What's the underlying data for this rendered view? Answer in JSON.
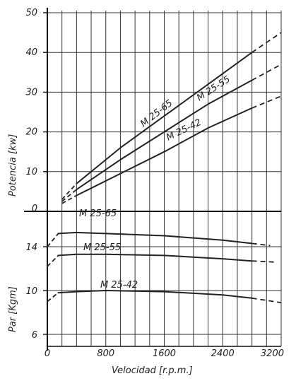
{
  "chart_data": [
    {
      "type": "line",
      "panel": "power",
      "ylabel": "Potencia [kw]",
      "xlim": [
        0,
        3200
      ],
      "ylim": [
        0,
        50
      ],
      "yticks": [
        0,
        10,
        20,
        30,
        40,
        50
      ],
      "grid": true,
      "series": [
        {
          "name": "M 25-65",
          "solid": [
            [
              400,
              7
            ],
            [
              1000,
              16
            ],
            [
              1600,
              24
            ],
            [
              2200,
              32
            ],
            [
              2800,
              40
            ]
          ],
          "dashed_low": [
            [
              200,
              3
            ],
            [
              400,
              7
            ]
          ],
          "dashed_high": [
            [
              2800,
              40
            ],
            [
              3200,
              45
            ]
          ]
        },
        {
          "name": "M 25-55",
          "solid": [
            [
              400,
              5.5
            ],
            [
              1000,
              13
            ],
            [
              1600,
              20
            ],
            [
              2200,
              27
            ],
            [
              2800,
              33
            ]
          ],
          "dashed_low": [
            [
              200,
              2.5
            ],
            [
              400,
              5.5
            ]
          ],
          "dashed_high": [
            [
              2800,
              33
            ],
            [
              3200,
              37
            ]
          ]
        },
        {
          "name": "M 25-42",
          "solid": [
            [
              400,
              4
            ],
            [
              1000,
              9.5
            ],
            [
              1600,
              15
            ],
            [
              2200,
              21
            ],
            [
              2800,
              26
            ]
          ],
          "dashed_low": [
            [
              200,
              2
            ],
            [
              400,
              4
            ]
          ],
          "dashed_high": [
            [
              2800,
              26
            ],
            [
              3200,
              29
            ]
          ]
        }
      ]
    },
    {
      "type": "line",
      "panel": "torque",
      "ylabel": "Par [Kgm]",
      "xlabel": "Velocidad [r.p.m.]",
      "xlim": [
        0,
        3200
      ],
      "xticks": [
        0,
        800,
        1600,
        2400,
        3200
      ],
      "ylim": [
        6,
        16
      ],
      "yticks": [
        6,
        10,
        14
      ],
      "grid": true,
      "series": [
        {
          "name": "M 25-65",
          "solid": [
            [
              150,
              15.2
            ],
            [
              400,
              15.3
            ],
            [
              800,
              15.2
            ],
            [
              1600,
              15.0
            ],
            [
              2400,
              14.6
            ],
            [
              2800,
              14.3
            ]
          ],
          "dashed_low": [
            [
              0,
              14.0
            ],
            [
              150,
              15.2
            ]
          ],
          "dashed_high": [
            [
              2800,
              14.3
            ],
            [
              3050,
              14.1
            ]
          ]
        },
        {
          "name": "M 25-55",
          "solid": [
            [
              150,
              13.2
            ],
            [
              400,
              13.3
            ],
            [
              800,
              13.3
            ],
            [
              1600,
              13.2
            ],
            [
              2400,
              12.9
            ],
            [
              2800,
              12.7
            ]
          ],
          "dashed_low": [
            [
              0,
              12.2
            ],
            [
              150,
              13.2
            ]
          ],
          "dashed_high": [
            [
              2800,
              12.7
            ],
            [
              3100,
              12.6
            ]
          ]
        },
        {
          "name": "M 25-42",
          "solid": [
            [
              150,
              9.8
            ],
            [
              400,
              9.9
            ],
            [
              800,
              10.0
            ],
            [
              1600,
              9.9
            ],
            [
              2400,
              9.6
            ],
            [
              2800,
              9.3
            ]
          ],
          "dashed_low": [
            [
              0,
              9.0
            ],
            [
              150,
              9.8
            ]
          ],
          "dashed_high": [
            [
              2800,
              9.3
            ],
            [
              3200,
              8.9
            ]
          ]
        }
      ]
    }
  ]
}
